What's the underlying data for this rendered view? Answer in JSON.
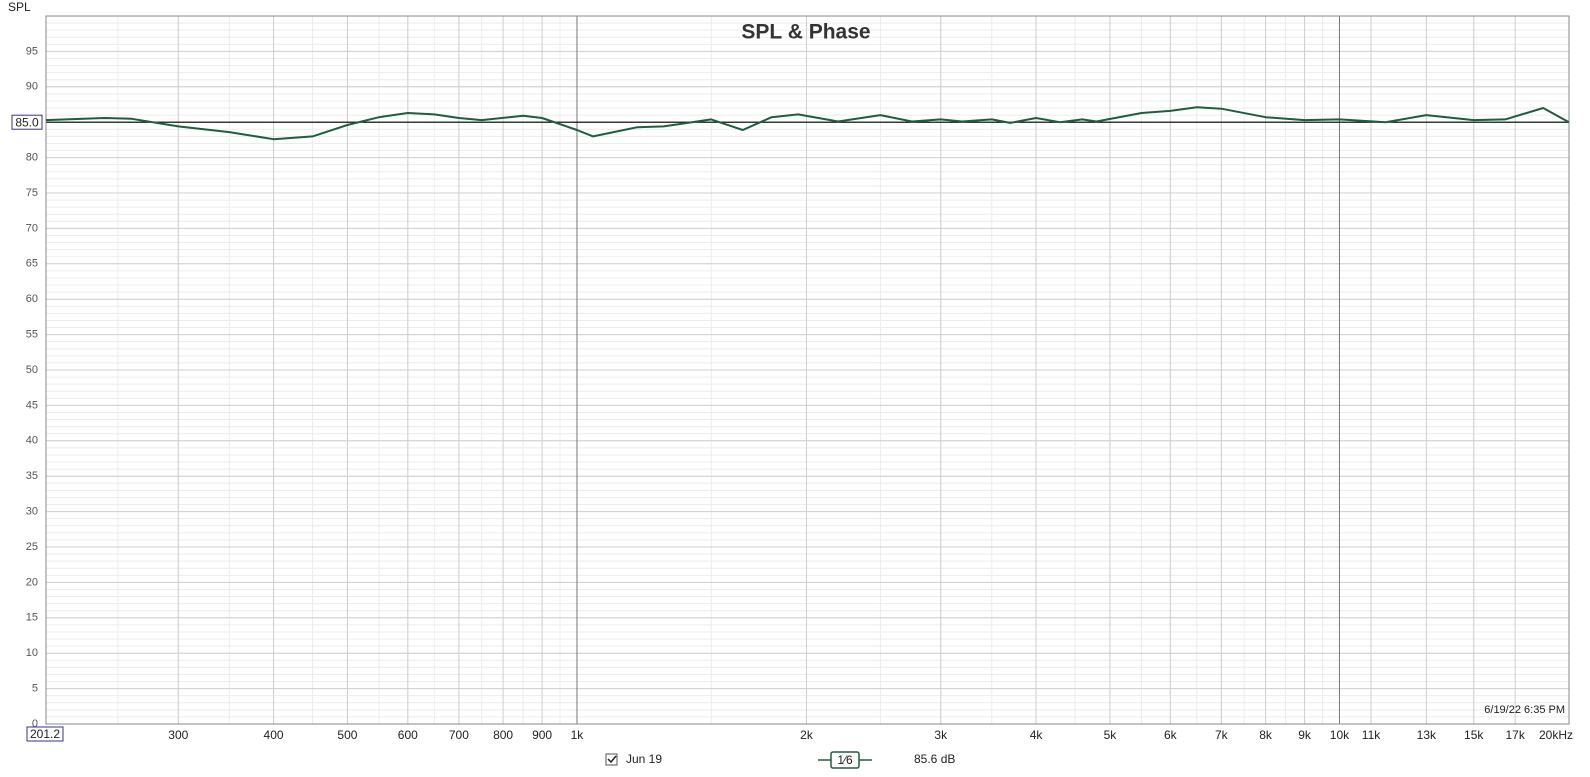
{
  "chart_data": {
    "type": "line",
    "title": "SPL & Phase",
    "y_label": "SPL",
    "timestamp": "6/19/22 6:35 PM",
    "x_scale": "log",
    "xlim": [
      201.2,
      20000
    ],
    "ylim": [
      0,
      100
    ],
    "xticks": [
      201.2,
      300,
      400,
      500,
      600,
      700,
      800,
      900,
      {
        "value": 1000,
        "label": "1k"
      },
      {
        "value": 2000,
        "label": "2k"
      },
      {
        "value": 3000,
        "label": "3k"
      },
      {
        "value": 4000,
        "label": "4k"
      },
      {
        "value": 5000,
        "label": "5k"
      },
      {
        "value": 6000,
        "label": "6k"
      },
      {
        "value": 7000,
        "label": "7k"
      },
      {
        "value": 8000,
        "label": "8k"
      },
      {
        "value": 9000,
        "label": "9k"
      },
      {
        "value": 10000,
        "label": "10k"
      },
      {
        "value": 11000,
        "label": "11k"
      },
      {
        "value": 13000,
        "label": "13k"
      },
      {
        "value": 15000,
        "label": "15k"
      },
      {
        "value": 17000,
        "label": "17k"
      },
      {
        "value": 20000,
        "label": "20kHz"
      }
    ],
    "yticks": [
      0,
      5,
      10,
      15,
      20,
      25,
      30,
      35,
      40,
      45,
      50,
      55,
      60,
      65,
      70,
      75,
      80,
      85,
      90,
      95
    ],
    "grid": true,
    "reference_line": {
      "value": 85.0,
      "label": "85.0"
    },
    "x": [
      201.2,
      240,
      260,
      300,
      350,
      400,
      450,
      500,
      550,
      600,
      650,
      700,
      750,
      850,
      900,
      1000,
      1050,
      1200,
      1300,
      1500,
      1650,
      1800,
      1950,
      2200,
      2500,
      2750,
      3000,
      3200,
      3500,
      3700,
      4000,
      4300,
      4600,
      4800,
      5500,
      6000,
      6500,
      7000,
      8000,
      9000,
      10000,
      11500,
      13000,
      15000,
      16500,
      18500,
      20000
    ],
    "series": [
      {
        "name": "Jun 19",
        "color": "#1e5e3e",
        "values": [
          85.3,
          85.6,
          85.5,
          84.4,
          83.6,
          82.6,
          83.0,
          84.6,
          85.7,
          86.3,
          86.1,
          85.6,
          85.3,
          85.9,
          85.6,
          83.9,
          83.0,
          84.3,
          84.4,
          85.4,
          83.9,
          85.7,
          86.1,
          85.1,
          86.0,
          85.1,
          85.4,
          85.1,
          85.4,
          84.9,
          85.6,
          85.0,
          85.4,
          85.1,
          86.3,
          86.6,
          87.1,
          86.9,
          85.7,
          85.3,
          85.4,
          85.0,
          86.0,
          85.3,
          85.4,
          87.0,
          85.0
        ]
      }
    ],
    "smoothing": "1⁄6",
    "level_label": "85.6 dB"
  }
}
